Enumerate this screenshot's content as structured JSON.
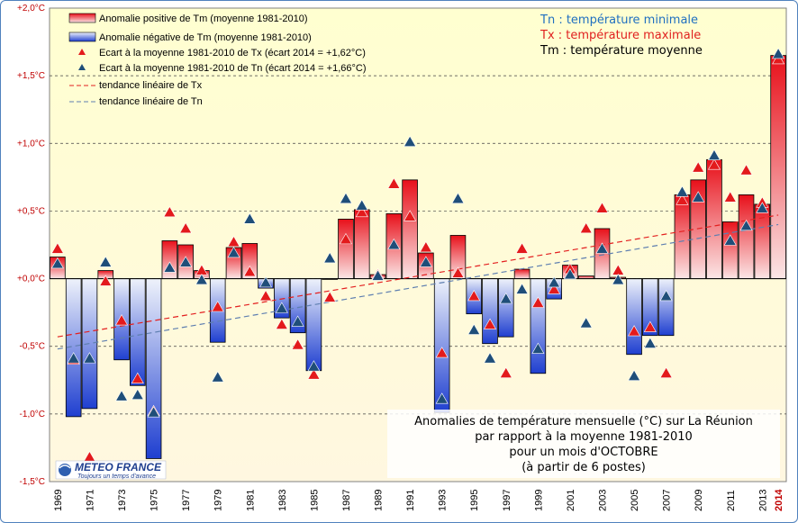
{
  "chart_data": {
    "type": "bar",
    "title": "Anomalies de température mensuelle (°C) sur La Réunion",
    "subtitle_lines": [
      "Anomalies de température mensuelle (°C) sur La Réunion",
      "par rapport à la moyenne 1981-2010",
      "pour un mois d'OCTOBRE",
      "(à partir de 6 postes)"
    ],
    "ylim": [
      -1.5,
      2.0
    ],
    "yticks": [
      {
        "value": 2.0,
        "label": "+2,0°C"
      },
      {
        "value": 1.5,
        "label": "+1,5°C"
      },
      {
        "value": 1.0,
        "label": "+1,0°C"
      },
      {
        "value": 0.5,
        "label": "+0,5°C"
      },
      {
        "value": 0.0,
        "label": "+0,0°C"
      },
      {
        "value": -0.5,
        "label": "-0,5°C"
      },
      {
        "value": -1.0,
        "label": "-1,0°C"
      },
      {
        "value": -1.5,
        "label": "-1,5°C"
      }
    ],
    "years": [
      1969,
      1970,
      1971,
      1972,
      1973,
      1974,
      1975,
      1976,
      1977,
      1978,
      1979,
      1980,
      1981,
      1982,
      1983,
      1984,
      1985,
      1986,
      1987,
      1988,
      1989,
      1990,
      1991,
      1992,
      1993,
      1994,
      1995,
      1996,
      1997,
      1998,
      1999,
      2000,
      2001,
      2002,
      2003,
      2004,
      2005,
      2006,
      2007,
      2008,
      2009,
      2010,
      2011,
      2012,
      2013,
      2014
    ],
    "x_tick_labels": [
      "1969",
      "1971",
      "1973",
      "1975",
      "1977",
      "1979",
      "1981",
      "1983",
      "1985",
      "1987",
      "1989",
      "1991",
      "1993",
      "1995",
      "1997",
      "1999",
      "2001",
      "2003",
      "2005",
      "2007",
      "2009",
      "2011",
      "2013",
      "2014"
    ],
    "series": [
      {
        "name": "Anomalie de Tm (moyenne 1981-2010)",
        "values": [
          0.16,
          -1.02,
          -0.96,
          0.06,
          -0.6,
          -0.79,
          -1.33,
          0.28,
          0.25,
          0.06,
          -0.47,
          0.23,
          0.26,
          -0.07,
          -0.29,
          -0.4,
          -0.68,
          0.0,
          0.44,
          0.51,
          0.03,
          0.48,
          0.73,
          0.19,
          -0.99,
          0.32,
          -0.26,
          -0.48,
          -0.43,
          0.07,
          -0.7,
          -0.15,
          0.1,
          0.02,
          0.37,
          0.01,
          -0.56,
          -0.42,
          -0.42,
          0.62,
          0.73,
          0.88,
          0.42,
          0.62,
          0.55,
          1.65
        ]
      },
      {
        "name": "Ecart à la moyenne 1981-2010 de Tx (écart 2014 = +1,62°C)",
        "values": [
          0.22,
          -0.6,
          -1.32,
          -0.02,
          -0.31,
          -0.74,
          -0.98,
          0.49,
          0.37,
          0.06,
          -0.21,
          0.27,
          0.05,
          -0.13,
          -0.34,
          -0.49,
          -0.71,
          -0.14,
          0.29,
          0.49,
          0.03,
          0.7,
          0.46,
          0.23,
          -0.55,
          0.04,
          -0.13,
          -0.34,
          -0.7,
          0.22,
          -0.18,
          -0.08,
          0.07,
          0.37,
          0.52,
          0.06,
          -0.39,
          -0.36,
          -0.7,
          0.58,
          0.82,
          0.84,
          0.6,
          0.8,
          0.56,
          1.62
        ]
      },
      {
        "name": "Ecart à la moyenne 1981-2010 de Tn (écart 2014 = +1,66°C)",
        "values": [
          0.11,
          -0.59,
          -0.59,
          0.12,
          -0.87,
          -0.86,
          -0.99,
          0.08,
          0.12,
          -0.01,
          -0.73,
          0.19,
          0.44,
          -0.03,
          -0.22,
          -0.32,
          -0.65,
          0.15,
          0.59,
          0.54,
          0.02,
          0.25,
          1.01,
          0.12,
          -0.89,
          0.59,
          -0.38,
          -0.59,
          -0.15,
          -0.08,
          -0.52,
          -0.03,
          0.03,
          -0.33,
          0.22,
          -0.01,
          -0.72,
          -0.48,
          -0.13,
          0.64,
          0.6,
          0.91,
          0.28,
          0.39,
          0.52,
          1.66
        ]
      }
    ],
    "trend_tx": {
      "name": "tendance linéaire de Tx",
      "start": [
        1969,
        -0.43
      ],
      "end": [
        2014,
        0.47
      ]
    },
    "trend_tn": {
      "name": "tendance linéaire de Tn",
      "start": [
        1969,
        -0.52
      ],
      "end": [
        2014,
        0.4
      ]
    },
    "legend": [
      {
        "key": "pos_bar",
        "label": "Anomalie positive de Tm (moyenne 1981-2010)"
      },
      {
        "key": "neg_bar",
        "label": "Anomalie négative de Tm (moyenne 1981-2010)"
      },
      {
        "key": "tx_tri",
        "label": "Ecart à la moyenne 1981-2010 de Tx (écart 2014 = +1,62°C)"
      },
      {
        "key": "tn_tri",
        "label": "Ecart à la moyenne 1981-2010 de Tn (écart 2014 = +1,66°C)"
      },
      {
        "key": "tx_trend",
        "label": "tendance linéaire de Tx"
      },
      {
        "key": "tn_trend",
        "label": "tendance linéaire de Tn"
      }
    ],
    "info_lines": [
      {
        "text": "Tn : température minimale",
        "color": "#1f6fc0"
      },
      {
        "text": "Tx : température maximale",
        "color": "#e02020"
      },
      {
        "text": "Tm : température moyenne",
        "color": "#000000"
      }
    ],
    "colors": {
      "positive": "#e8101a",
      "negative": "#1f3fd0",
      "tx": "#e31a1c",
      "tn": "#1f4e79",
      "tx_trend": "#e32020",
      "tn_trend": "#5f7fb0"
    }
  },
  "logo": {
    "name": "METEO FRANCE",
    "tagline": "Toujours un temps d'avance"
  }
}
